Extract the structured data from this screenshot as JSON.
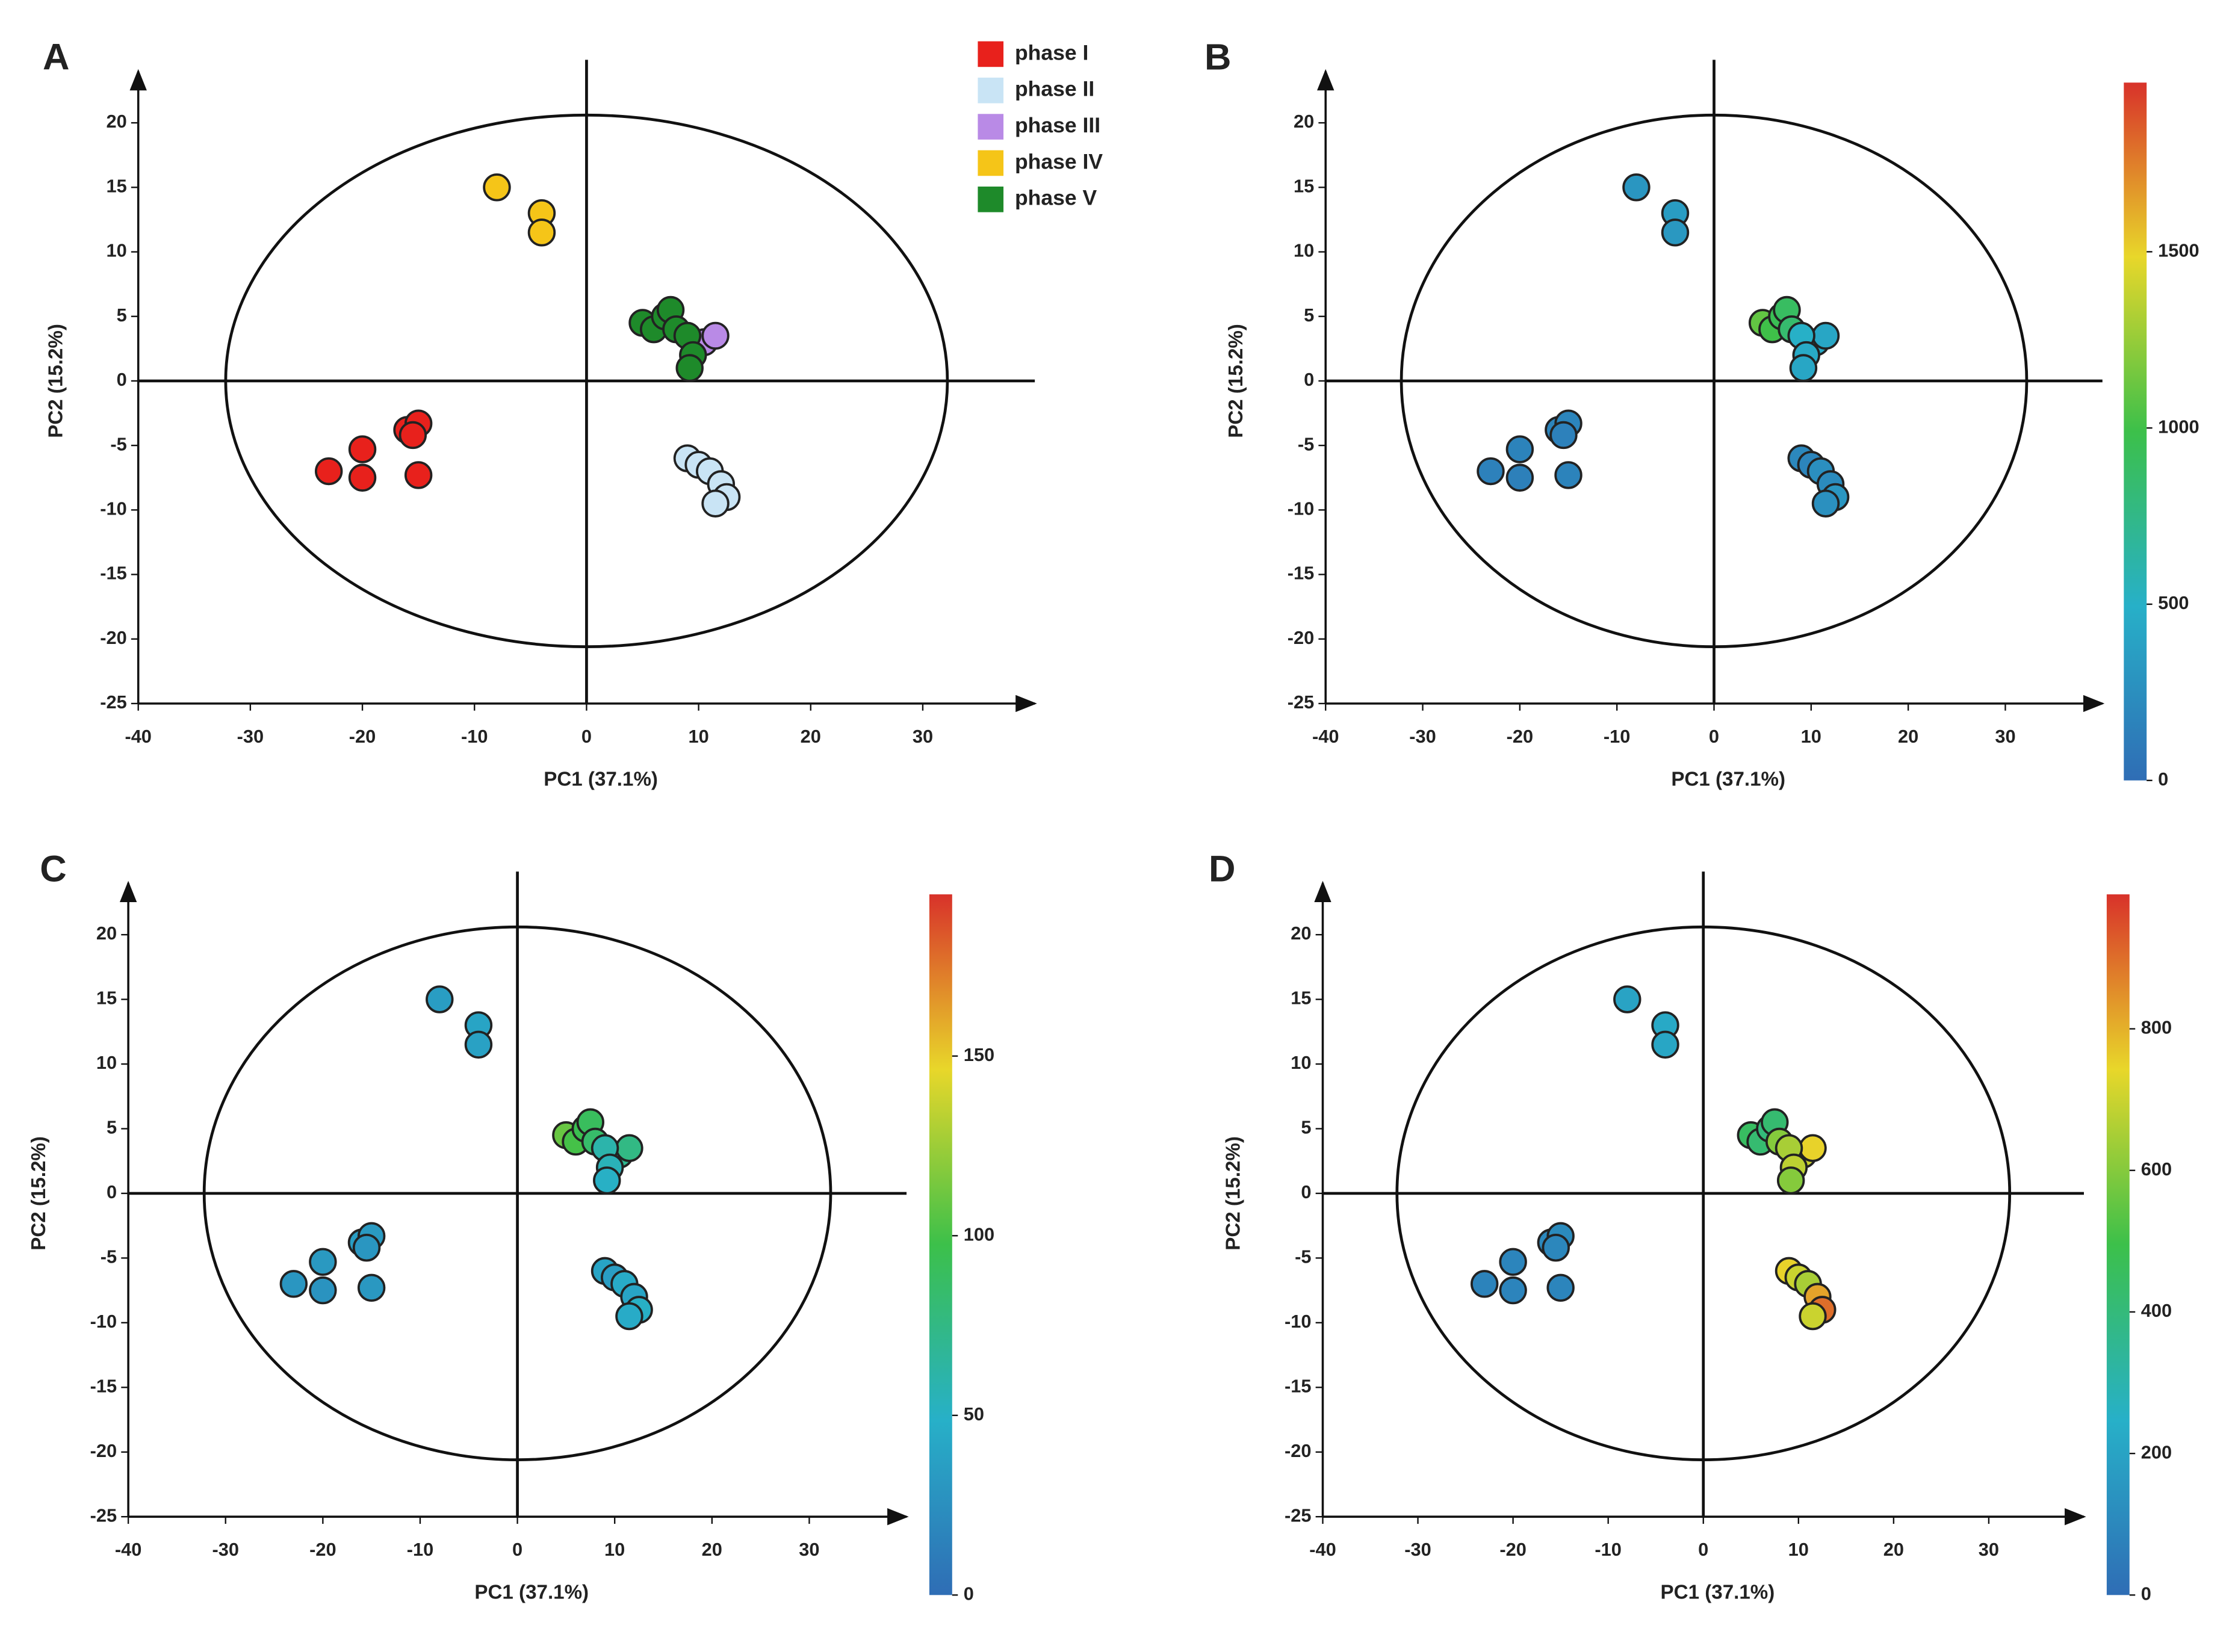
{
  "chart_data": [
    {
      "type": "scatter",
      "label": "A",
      "xlabel": "PC1 (37.1%)",
      "ylabel": "PC2 (15.2%)",
      "xlim": [
        -40,
        40
      ],
      "ylim": [
        -25,
        24
      ],
      "xticks": [
        -40,
        -30,
        -20,
        -10,
        0,
        10,
        20,
        30
      ],
      "yticks": [
        -25,
        -20,
        -15,
        -10,
        -5,
        0,
        5,
        10,
        15,
        20
      ],
      "ellipse": [
        32.2,
        20.6
      ],
      "legend": "top-right",
      "series": [
        {
          "name": "phase I",
          "color": "#e8211c",
          "x": [
            -23,
            -20,
            -20,
            -16,
            -15,
            -15.5,
            -15
          ],
          "y": [
            -7,
            -5.3,
            -7.5,
            -3.8,
            -3.3,
            -4.2,
            -7.3
          ]
        },
        {
          "name": "phase II",
          "color": "#c9e4f5",
          "x": [
            9,
            10,
            11,
            12,
            12.5,
            11.5
          ],
          "y": [
            -6,
            -6.5,
            -7,
            -8,
            -9,
            -9.5
          ]
        },
        {
          "name": "phase III",
          "color": "#b98ae6",
          "x": [
            10.5,
            11.5
          ],
          "y": [
            3,
            3.5
          ]
        },
        {
          "name": "phase IV",
          "color": "#f5c518",
          "x": [
            -8,
            -4,
            -4
          ],
          "y": [
            15,
            13,
            11.5
          ]
        },
        {
          "name": "phase V",
          "color": "#1e8a2a",
          "x": [
            5,
            6,
            7,
            7.5,
            8,
            9,
            9.5,
            9.2
          ],
          "y": [
            4.5,
            4,
            5,
            5.5,
            4,
            3.5,
            2,
            1
          ]
        }
      ]
    },
    {
      "type": "colorscatter",
      "label": "B",
      "xlabel": "PC1 (37.1%)",
      "ylabel": "PC2 (15.2%)",
      "xlim": [
        -40,
        40
      ],
      "ylim": [
        -25,
        24
      ],
      "xticks": [
        -40,
        -30,
        -20,
        -10,
        0,
        10,
        20,
        30
      ],
      "yticks": [
        -25,
        -20,
        -15,
        -10,
        -5,
        0,
        5,
        10,
        15,
        20
      ],
      "ellipse": [
        32.2,
        20.6
      ],
      "clim": [
        0,
        1980
      ],
      "cticks": [
        0,
        500,
        1000,
        1500
      ],
      "x": [
        -23,
        -20,
        -20,
        -16,
        -15,
        -15.5,
        -15,
        9,
        10,
        11,
        12,
        12.5,
        11.5,
        10.5,
        11.5,
        -8,
        -4,
        -4,
        5,
        6,
        7,
        7.5,
        8,
        9,
        9.5,
        9.2
      ],
      "y": [
        -7,
        -5.3,
        -7.5,
        -3.8,
        -3.3,
        -4.2,
        -7.3,
        -6,
        -6.5,
        -7,
        -8,
        -9,
        -9.5,
        3,
        3.5,
        15,
        13,
        11.5,
        4.5,
        4,
        5,
        5.5,
        4,
        3.5,
        2,
        1
      ],
      "c": [
        150,
        160,
        140,
        170,
        180,
        150,
        160,
        200,
        180,
        250,
        220,
        300,
        260,
        450,
        420,
        300,
        350,
        320,
        1100,
        1000,
        950,
        900,
        850,
        500,
        450,
        420
      ]
    },
    {
      "type": "colorscatter",
      "label": "C",
      "xlabel": "PC1 (37.1%)",
      "ylabel": "PC2 (15.2%)",
      "xlim": [
        -40,
        40
      ],
      "ylim": [
        -25,
        24
      ],
      "xticks": [
        -40,
        -30,
        -20,
        -10,
        0,
        10,
        20,
        30
      ],
      "yticks": [
        -25,
        -20,
        -15,
        -10,
        -5,
        0,
        5,
        10,
        15,
        20
      ],
      "ellipse": [
        32.2,
        20.6
      ],
      "clim": [
        0,
        195
      ],
      "cticks": [
        0,
        50,
        100,
        150
      ],
      "x": [
        -23,
        -20,
        -20,
        -16,
        -15,
        -15.5,
        -15,
        9,
        10,
        11,
        12,
        12.5,
        11.5,
        10.5,
        11.5,
        -8,
        -4,
        -4,
        5,
        6,
        7,
        7.5,
        8,
        9,
        9.5,
        9.2
      ],
      "y": [
        -7,
        -5.3,
        -7.5,
        -3.8,
        -3.3,
        -4.2,
        -7.3,
        -6,
        -6.5,
        -7,
        -8,
        -9,
        -9.5,
        3,
        3.5,
        15,
        13,
        11.5,
        4.5,
        4,
        5,
        5.5,
        4,
        3.5,
        2,
        1
      ],
      "c": [
        30,
        32,
        28,
        35,
        33,
        30,
        31,
        40,
        35,
        45,
        40,
        50,
        45,
        70,
        75,
        35,
        40,
        38,
        110,
        100,
        95,
        90,
        85,
        60,
        55,
        50
      ]
    },
    {
      "type": "colorscatter",
      "label": "D",
      "xlabel": "PC1 (37.1%)",
      "ylabel": "PC2 (15.2%)",
      "xlim": [
        -40,
        40
      ],
      "ylim": [
        -25,
        24
      ],
      "xticks": [
        -40,
        -30,
        -20,
        -10,
        0,
        10,
        20,
        30
      ],
      "yticks": [
        -25,
        -20,
        -15,
        -10,
        -5,
        0,
        5,
        10,
        15,
        20
      ],
      "ellipse": [
        32.2,
        20.6
      ],
      "clim": [
        0,
        990
      ],
      "cticks": [
        0,
        200,
        400,
        600,
        800
      ],
      "x": [
        -23,
        -20,
        -20,
        -16,
        -15,
        -15.5,
        -15,
        9,
        10,
        11,
        12,
        12.5,
        11.5,
        10.5,
        11.5,
        -8,
        -4,
        -4,
        5,
        6,
        7,
        7.5,
        8,
        9,
        9.5,
        9.2
      ],
      "y": [
        -7,
        -5.3,
        -7.5,
        -3.8,
        -3.3,
        -4.2,
        -7.3,
        -6,
        -6.5,
        -7,
        -8,
        -9,
        -9.5,
        3,
        3.5,
        15,
        13,
        11.5,
        4.5,
        4,
        5,
        5.5,
        4,
        3.5,
        2,
        1
      ],
      "c": [
        80,
        90,
        85,
        100,
        110,
        95,
        90,
        750,
        700,
        650,
        820,
        900,
        700,
        700,
        750,
        200,
        220,
        210,
        450,
        420,
        400,
        420,
        600,
        650,
        680,
        600
      ]
    }
  ]
}
